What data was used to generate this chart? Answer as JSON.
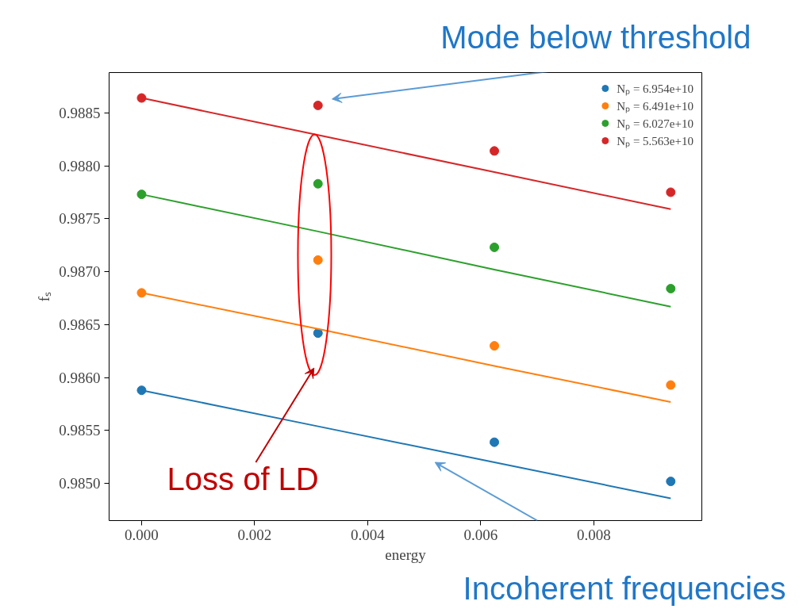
{
  "chart_data": {
    "type": "scatter",
    "xlabel": "energy",
    "ylabel": "fₛ",
    "x": [
      0,
      0.00312,
      0.00624,
      0.00936
    ],
    "series": [
      {
        "name": "Nₚ = 6.954e+10",
        "color": "#1f77b4",
        "values": [
          0.98588,
          0.98642,
          0.98539,
          0.98502
        ]
      },
      {
        "name": "Nₚ = 6.491e+10",
        "color": "#ff7f0e",
        "values": [
          0.9868,
          0.98711,
          0.9863,
          0.98593
        ]
      },
      {
        "name": "Nₚ = 6.027e+10",
        "color": "#2ca02c",
        "values": [
          0.98773,
          0.98783,
          0.98723,
          0.98684
        ]
      },
      {
        "name": "Nₚ = 5.563e+10",
        "color": "#d62728",
        "values": [
          0.98864,
          0.98857,
          0.98814,
          0.98775
        ]
      },
      {
        "type": "line",
        "marker": "none",
        "color": "#1f77b4",
        "values": [
          0.98588,
          0.98554,
          0.9852,
          0.98486
        ]
      },
      {
        "type": "line",
        "marker": "none",
        "color": "#ff7f0e",
        "values": [
          0.9868,
          0.98646,
          0.98611,
          0.98577
        ]
      },
      {
        "type": "line",
        "marker": "none",
        "color": "#2ca02c",
        "values": [
          0.98773,
          0.98738,
          0.98702,
          0.98667
        ]
      },
      {
        "type": "line",
        "marker": "none",
        "color": "#d62728",
        "values": [
          0.98864,
          0.98829,
          0.98794,
          0.98759
        ]
      }
    ],
    "xlim": [
      -0.000575,
      0.00991
    ],
    "ylim": [
      0.98465,
      0.98888
    ],
    "xticks": [
      {
        "value": 0,
        "label": "0.000"
      },
      0.002,
      0.004,
      0.006,
      0.008
    ],
    "yticks": [
      {
        "value": 0.985,
        "label": "0.9850"
      },
      0.9855,
      {
        "value": 0.986,
        "label": "0.9860"
      },
      0.9865,
      {
        "value": 0.987,
        "label": "0.9870"
      },
      0.9875,
      {
        "value": 0.988,
        "label": "0.9880"
      },
      0.9885
    ],
    "marker": "circle",
    "legend": "top right",
    "grid": false,
    "annotations": [
      "Mode below threshold",
      "Loss of LD",
      "Incoherent frequencies"
    ]
  }
}
